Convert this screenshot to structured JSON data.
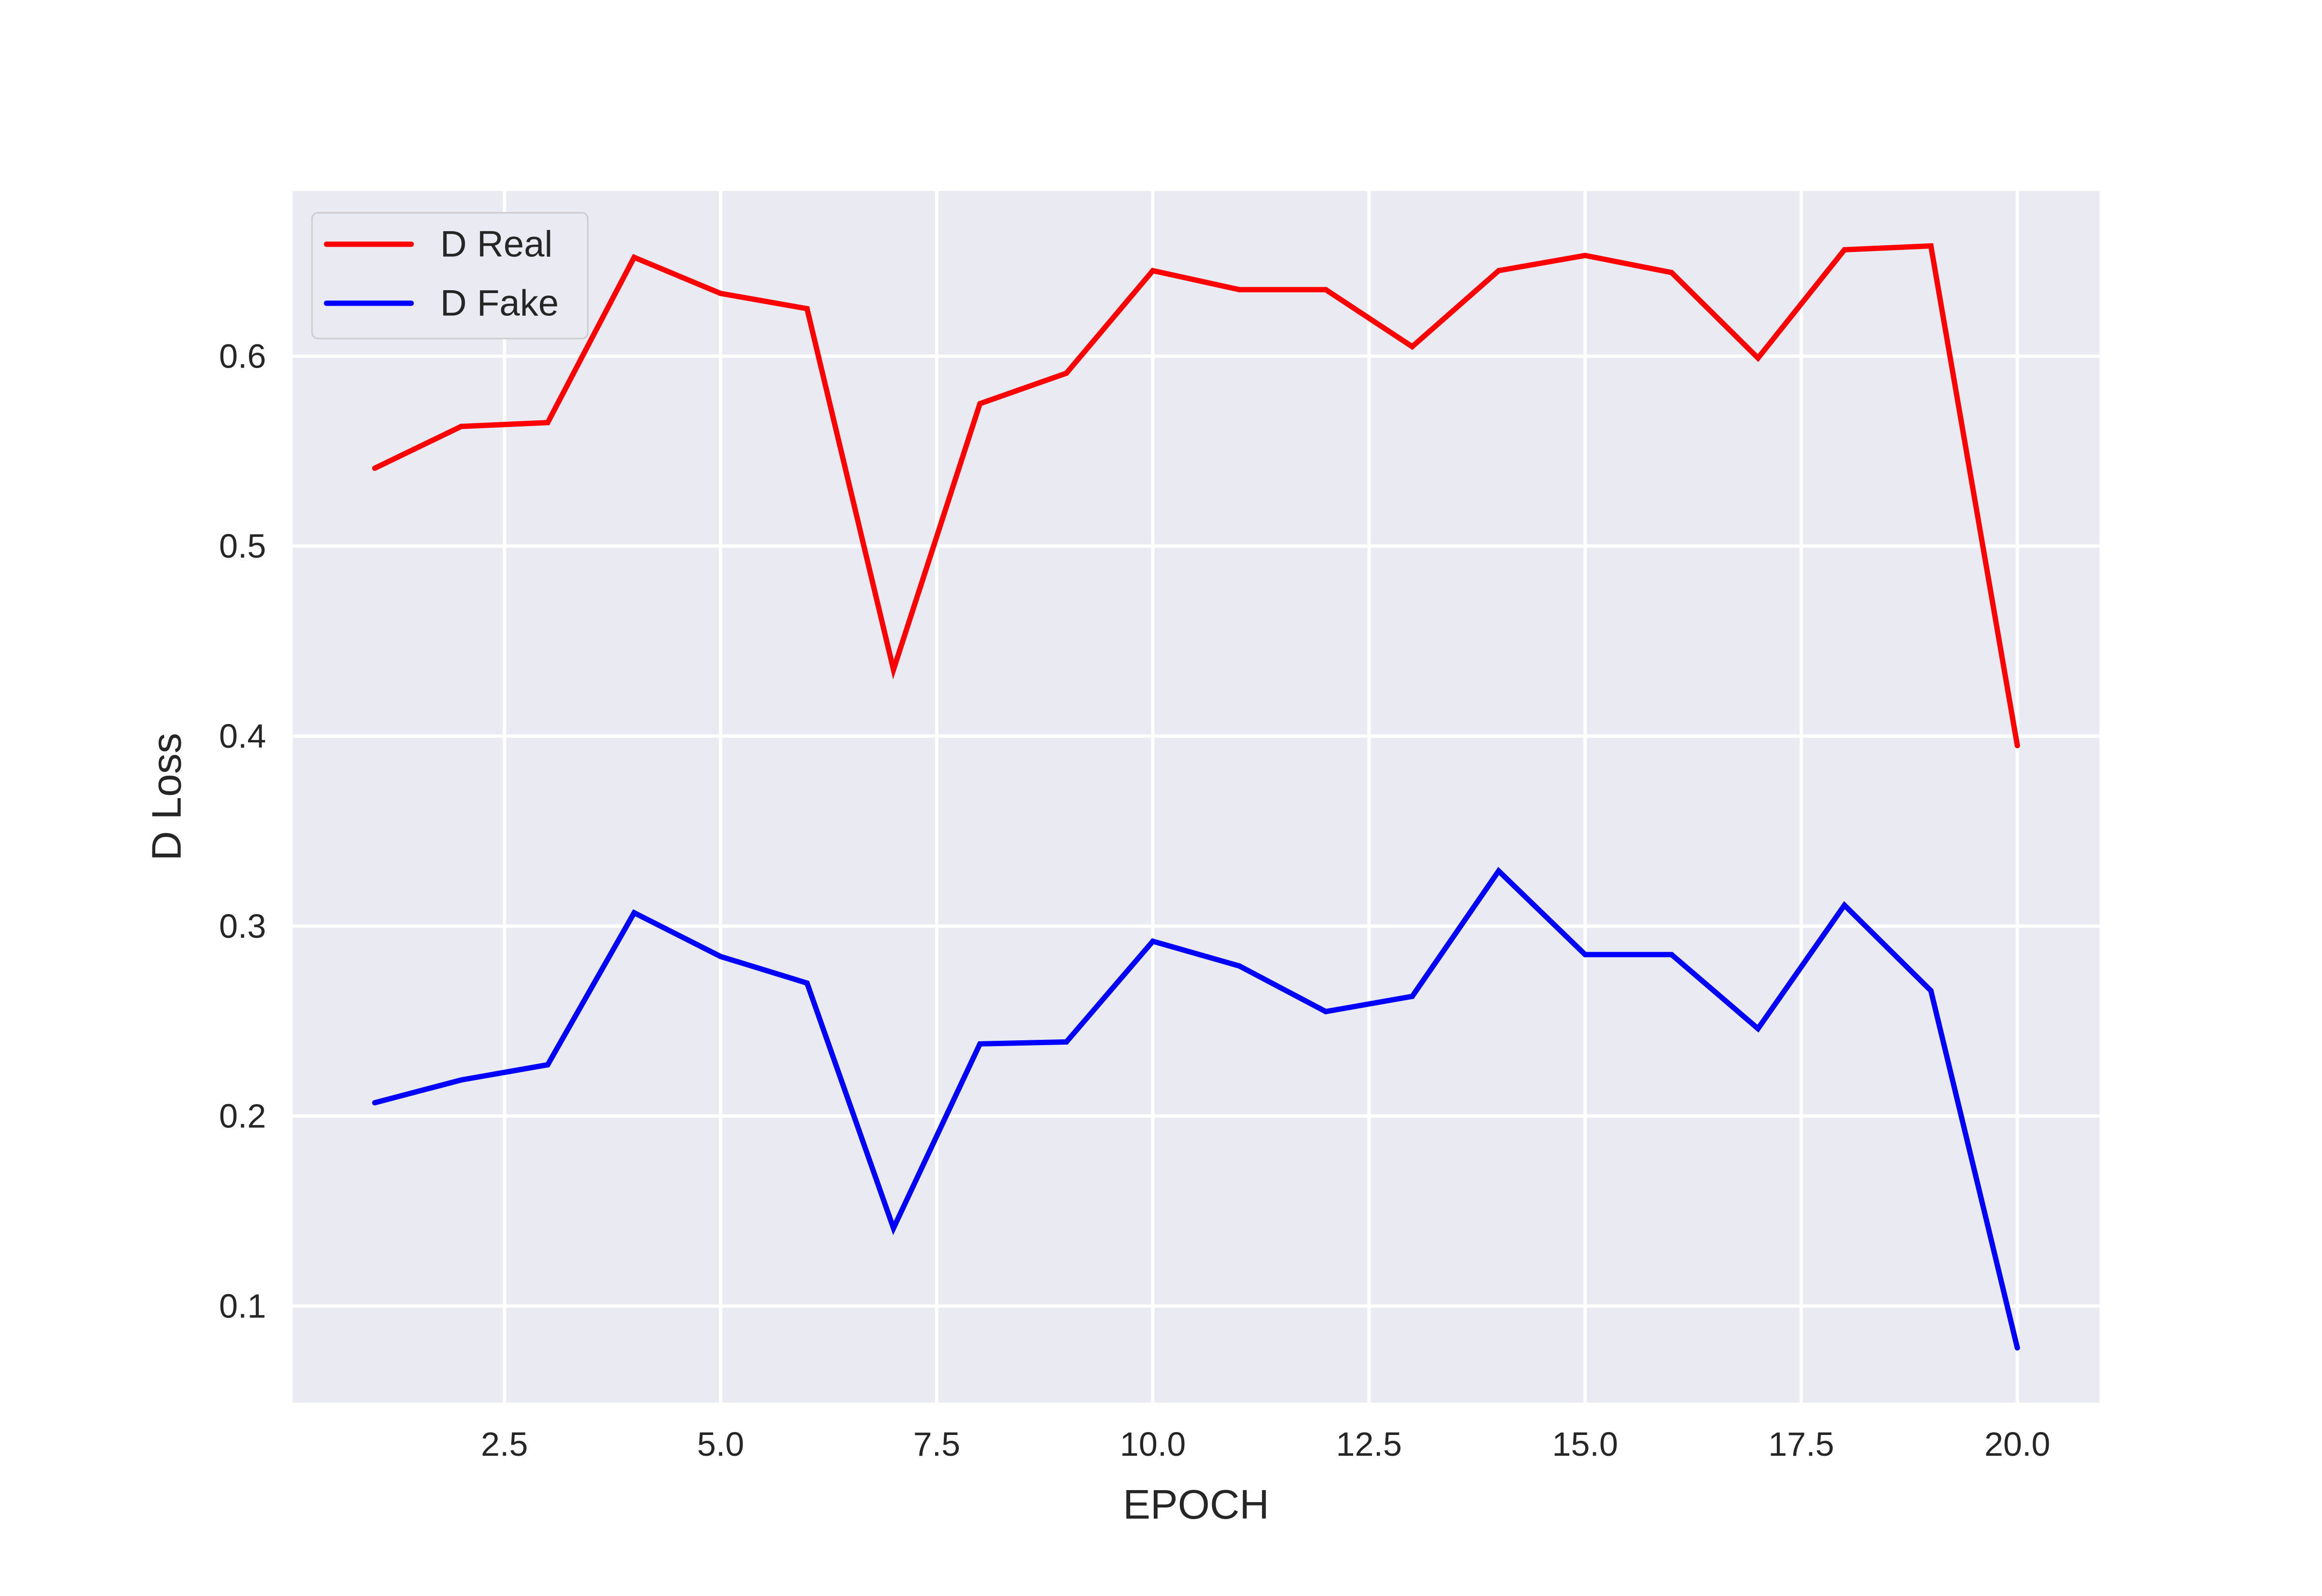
{
  "chart_data": {
    "type": "line",
    "title": "",
    "xlabel": "EPOCH",
    "ylabel": "D Loss",
    "x": [
      1,
      2,
      3,
      4,
      5,
      6,
      7,
      8,
      9,
      10,
      11,
      12,
      13,
      14,
      15,
      16,
      17,
      18,
      19,
      20
    ],
    "series": [
      {
        "name": "D Real",
        "color": "#ff0000",
        "values": [
          0.541,
          0.563,
          0.565,
          0.652,
          0.633,
          0.625,
          0.435,
          0.575,
          0.591,
          0.645,
          0.635,
          0.635,
          0.605,
          0.645,
          0.653,
          0.644,
          0.599,
          0.656,
          0.658,
          0.395
        ]
      },
      {
        "name": "D Fake",
        "color": "#0000ff",
        "values": [
          0.207,
          0.219,
          0.227,
          0.307,
          0.284,
          0.27,
          0.141,
          0.238,
          0.239,
          0.292,
          0.279,
          0.255,
          0.263,
          0.329,
          0.285,
          0.285,
          0.246,
          0.311,
          0.266,
          0.078
        ]
      }
    ],
    "xlim": [
      0.05,
      20.95
    ],
    "ylim": [
      0.0492,
      0.6869
    ],
    "xticks": [
      2.5,
      5.0,
      7.5,
      10.0,
      12.5,
      15.0,
      17.5,
      20.0
    ],
    "xtick_labels": [
      "2.5",
      "5.0",
      "7.5",
      "10.0",
      "12.5",
      "15.0",
      "17.5",
      "20.0"
    ],
    "yticks": [
      0.1,
      0.2,
      0.3,
      0.4,
      0.5,
      0.6
    ],
    "ytick_labels": [
      "0.1",
      "0.2",
      "0.3",
      "0.4",
      "0.5",
      "0.6"
    ],
    "grid": true,
    "legend_position": "upper-left",
    "plot_background": "#eaeaf2",
    "grid_color": "#ffffff"
  }
}
